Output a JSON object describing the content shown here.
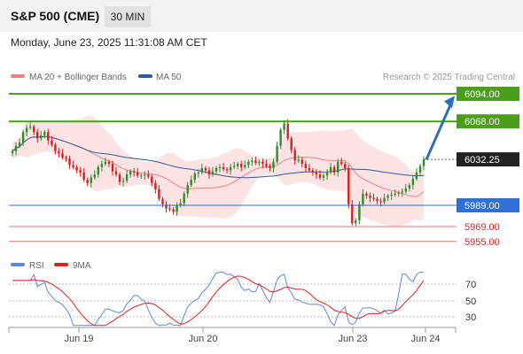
{
  "header": {
    "title": "S&P 500 (CME)",
    "timeframe_button": "30 MIN",
    "datetime": "Monday, June 23, 2025 11:31:08 AM CET"
  },
  "legend": {
    "items": [
      {
        "label": "MA 20 + Bollinger Bands",
        "color": "#f08080"
      },
      {
        "label": "MA 50",
        "color": "#2a5b9e"
      }
    ],
    "source": "Research © 2025 Trading Central"
  },
  "colors": {
    "up_candle": "#2e8b2e",
    "down_candle": "#d62020",
    "bollinger_fill": "#fde3e3",
    "ma20": "#f08080",
    "ma50": "#2a5b9e",
    "resistance": "#4a9e1a",
    "pivot": "#2f6fd6",
    "support": "#e57373",
    "arrow": "#2f6fb8",
    "current": "#222222",
    "rsi": "#5b8ad8",
    "rsi_ma": "#e02020"
  },
  "price_levels": [
    {
      "value": 6094.0,
      "label": "6094.00",
      "kind": "resistance"
    },
    {
      "value": 6068.0,
      "label": "6068.00",
      "kind": "resistance"
    },
    {
      "value": 6032.25,
      "label": "6032.25",
      "kind": "current"
    },
    {
      "value": 5989.0,
      "label": "5989.00",
      "kind": "pivot"
    },
    {
      "value": 5969.0,
      "label": "5969.00",
      "kind": "support"
    },
    {
      "value": 5955.0,
      "label": "5955.00",
      "kind": "support"
    }
  ],
  "x_axis": {
    "ticks": [
      "Jun 19",
      "Jun 20",
      "Jun 23",
      "Jun 24"
    ]
  },
  "rsi_panel": {
    "legend": [
      {
        "label": "RSI",
        "color": "#5b8ad8"
      },
      {
        "label": "9MA",
        "color": "#e02020"
      }
    ],
    "ticks": [
      "70",
      "50",
      "30"
    ]
  },
  "chart_data": {
    "type": "candlestick",
    "title": "S&P 500 (CME)",
    "interval": "30 MIN",
    "y_range": [
      5951,
      6100
    ],
    "x_labels": [
      "Jun 19",
      "Jun 20",
      "Jun 23",
      "Jun 24"
    ],
    "close_series": [
      6040,
      6045,
      6048,
      6058,
      6062,
      6063,
      6058,
      6052,
      6055,
      6058,
      6050,
      6046,
      6040,
      6038,
      6034,
      6033,
      6027,
      6025,
      6022,
      6020,
      6013,
      6010,
      6015,
      6018,
      6025,
      6028,
      6030,
      6028,
      6021,
      6018,
      6011,
      6012,
      6018,
      6021,
      6020,
      6017,
      6017,
      6018,
      6016,
      6010,
      6004,
      5995,
      5990,
      5986,
      5985,
      5983,
      5989,
      5991,
      6000,
      6008,
      6013,
      6019,
      6020,
      6024,
      6022,
      6018,
      6021,
      6024,
      6025,
      6023,
      6022,
      6025,
      6026,
      6028,
      6025,
      6027,
      6030,
      6031,
      6029,
      6030,
      6028,
      6026,
      6024,
      6030,
      6045,
      6060,
      6066,
      6052,
      6041,
      6031,
      6032,
      6028,
      6024,
      6022,
      6020,
      6018,
      6015,
      6017,
      6020,
      6025,
      6020,
      6030,
      6028,
      6024,
      5990,
      5972,
      5975,
      5990,
      6000,
      5998,
      5996,
      5995,
      5993,
      5992,
      5996,
      5998,
      5999,
      6000,
      6001,
      6002,
      6005,
      6008,
      6014,
      6020,
      6026,
      6032
    ],
    "rsi": {
      "ticks": [
        70,
        50,
        30
      ],
      "last_rsi": 68,
      "last_ma": 62
    }
  }
}
